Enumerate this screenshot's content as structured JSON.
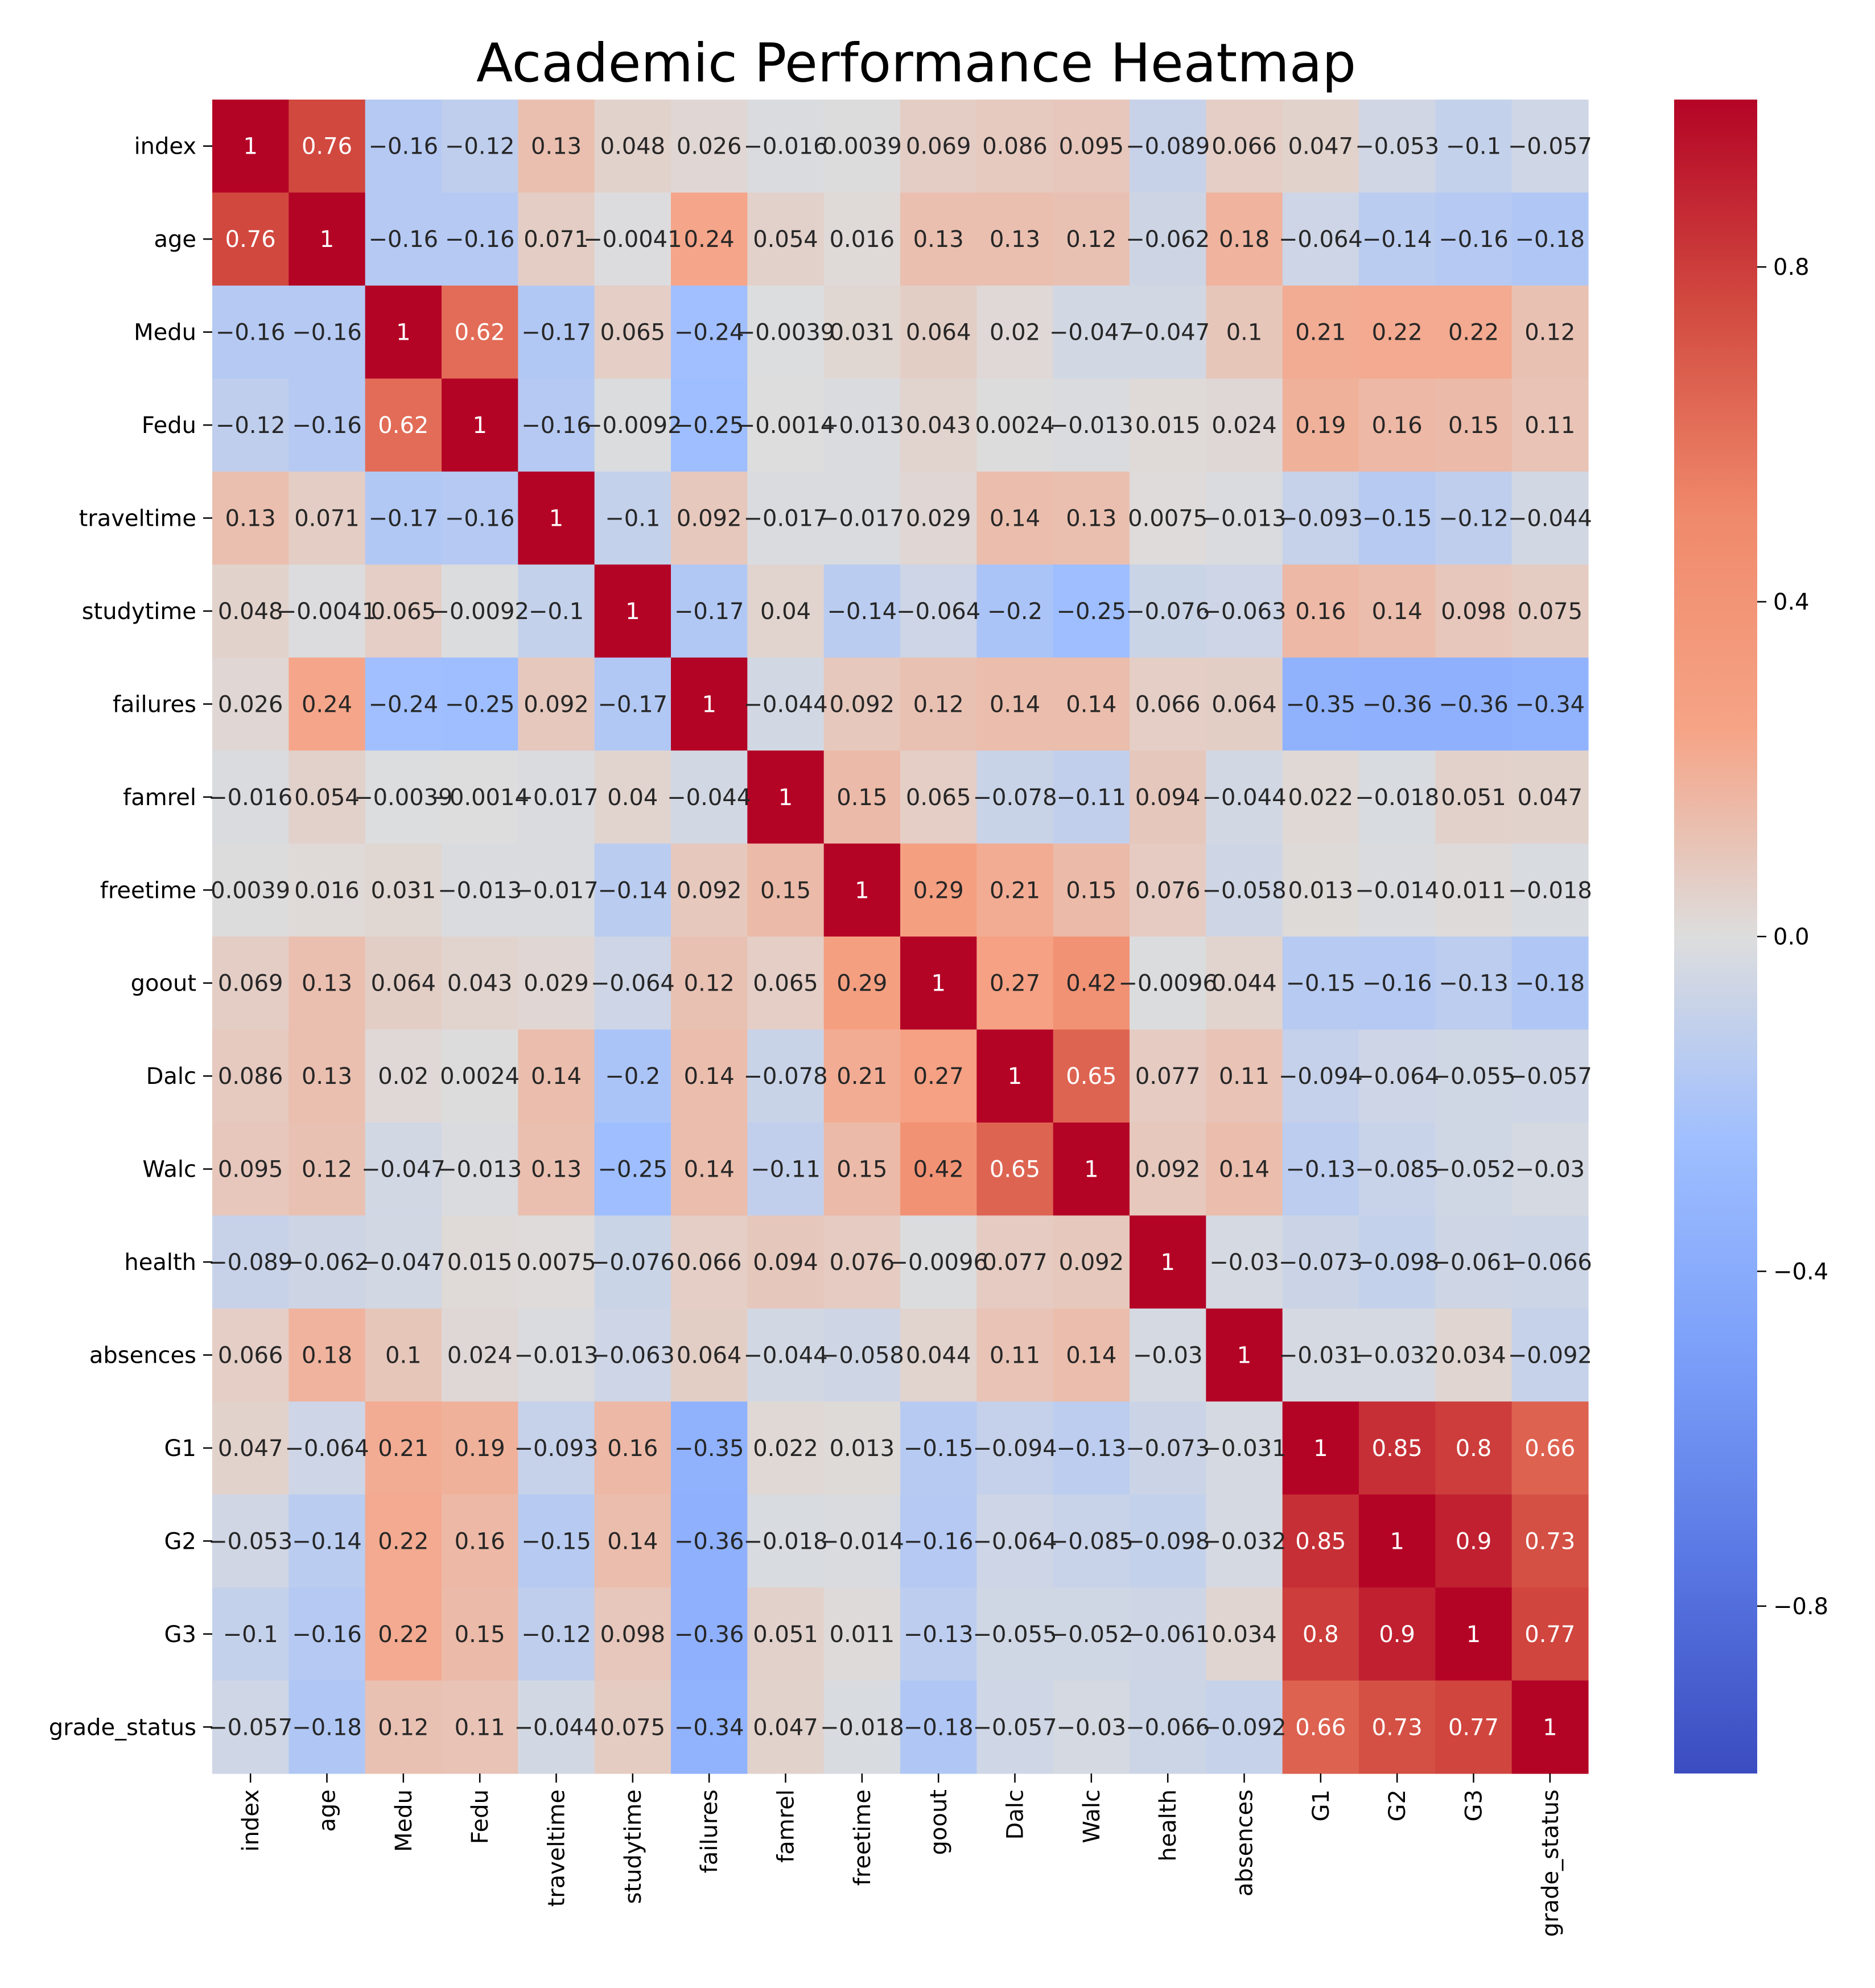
{
  "chart_data": {
    "type": "heatmap",
    "title": "Academic Performance Heatmap",
    "xlabel": "",
    "ylabel": "",
    "labels": [
      "index",
      "age",
      "Medu",
      "Fedu",
      "traveltime",
      "studytime",
      "failures",
      "famrel",
      "freetime",
      "goout",
      "Dalc",
      "Walc",
      "health",
      "absences",
      "G1",
      "G2",
      "G3",
      "grade_status"
    ],
    "values": [
      [
        1,
        0.76,
        -0.16,
        -0.12,
        0.13,
        0.048,
        0.026,
        -0.016,
        0.0039,
        0.069,
        0.086,
        0.095,
        -0.089,
        0.066,
        0.047,
        -0.053,
        -0.1,
        -0.057
      ],
      [
        0.76,
        1,
        -0.16,
        -0.16,
        0.071,
        -0.0041,
        0.24,
        0.054,
        0.016,
        0.13,
        0.13,
        0.12,
        -0.062,
        0.18,
        -0.064,
        -0.14,
        -0.16,
        -0.18
      ],
      [
        -0.16,
        -0.16,
        1,
        0.62,
        -0.17,
        0.065,
        -0.24,
        -0.0039,
        0.031,
        0.064,
        0.02,
        -0.047,
        -0.047,
        0.1,
        0.21,
        0.22,
        0.22,
        0.12
      ],
      [
        -0.12,
        -0.16,
        0.62,
        1,
        -0.16,
        -0.0092,
        -0.25,
        -0.0014,
        -0.013,
        0.043,
        0.0024,
        -0.013,
        0.015,
        0.024,
        0.19,
        0.16,
        0.15,
        0.11
      ],
      [
        0.13,
        0.071,
        -0.17,
        -0.16,
        1,
        -0.1,
        0.092,
        -0.017,
        -0.017,
        0.029,
        0.14,
        0.13,
        0.0075,
        -0.013,
        -0.093,
        -0.15,
        -0.12,
        -0.044
      ],
      [
        0.048,
        -0.0041,
        0.065,
        -0.0092,
        -0.1,
        1,
        -0.17,
        0.04,
        -0.14,
        -0.064,
        -0.2,
        -0.25,
        -0.076,
        -0.063,
        0.16,
        0.14,
        0.098,
        0.075
      ],
      [
        0.026,
        0.24,
        -0.24,
        -0.25,
        0.092,
        -0.17,
        1,
        -0.044,
        0.092,
        0.12,
        0.14,
        0.14,
        0.066,
        0.064,
        -0.35,
        -0.36,
        -0.36,
        -0.34
      ],
      [
        -0.016,
        0.054,
        -0.0039,
        -0.0014,
        -0.017,
        0.04,
        -0.044,
        1,
        0.15,
        0.065,
        -0.078,
        -0.11,
        0.094,
        -0.044,
        0.022,
        -0.018,
        0.051,
        0.047
      ],
      [
        0.0039,
        0.016,
        0.031,
        -0.013,
        -0.017,
        -0.14,
        0.092,
        0.15,
        1,
        0.29,
        0.21,
        0.15,
        0.076,
        -0.058,
        0.013,
        -0.014,
        0.011,
        -0.018
      ],
      [
        0.069,
        0.13,
        0.064,
        0.043,
        0.029,
        -0.064,
        0.12,
        0.065,
        0.29,
        1,
        0.27,
        0.42,
        -0.0096,
        0.044,
        -0.15,
        -0.16,
        -0.13,
        -0.18
      ],
      [
        0.086,
        0.13,
        0.02,
        0.0024,
        0.14,
        -0.2,
        0.14,
        -0.078,
        0.21,
        0.27,
        1,
        0.65,
        0.077,
        0.11,
        -0.094,
        -0.064,
        -0.055,
        -0.057
      ],
      [
        0.095,
        0.12,
        -0.047,
        -0.013,
        0.13,
        -0.25,
        0.14,
        -0.11,
        0.15,
        0.42,
        0.65,
        1,
        0.092,
        0.14,
        -0.13,
        -0.085,
        -0.052,
        -0.03
      ],
      [
        -0.089,
        -0.062,
        -0.047,
        0.015,
        0.0075,
        -0.076,
        0.066,
        0.094,
        0.076,
        -0.0096,
        0.077,
        0.092,
        1,
        -0.03,
        -0.073,
        -0.098,
        -0.061,
        -0.066
      ],
      [
        0.066,
        0.18,
        0.1,
        0.024,
        -0.013,
        -0.063,
        0.064,
        -0.044,
        -0.058,
        0.044,
        0.11,
        0.14,
        -0.03,
        1,
        -0.031,
        -0.032,
        0.034,
        -0.092
      ],
      [
        0.047,
        -0.064,
        0.21,
        0.19,
        -0.093,
        0.16,
        -0.35,
        0.022,
        0.013,
        -0.15,
        -0.094,
        -0.13,
        -0.073,
        -0.031,
        1,
        0.85,
        0.8,
        0.66
      ],
      [
        -0.053,
        -0.14,
        0.22,
        0.16,
        -0.15,
        0.14,
        -0.36,
        -0.018,
        -0.014,
        -0.16,
        -0.064,
        -0.085,
        -0.098,
        -0.032,
        0.85,
        1,
        0.9,
        0.73
      ],
      [
        -0.1,
        -0.16,
        0.22,
        0.15,
        -0.12,
        0.098,
        -0.36,
        0.051,
        0.011,
        -0.13,
        -0.055,
        -0.052,
        -0.061,
        0.034,
        0.8,
        0.9,
        1,
        0.77
      ],
      [
        -0.057,
        -0.18,
        0.12,
        0.11,
        -0.044,
        0.075,
        -0.34,
        0.047,
        -0.018,
        -0.18,
        -0.057,
        -0.03,
        -0.066,
        -0.092,
        0.66,
        0.73,
        0.77,
        1
      ]
    ],
    "colormap": "coolwarm",
    "vmin": -1,
    "vmax": 1,
    "colorbar_ticks": [
      0.8,
      0.4,
      0.0,
      -0.4,
      -0.8
    ],
    "colorbar_tick_labels": [
      "0.8",
      "0.4",
      "0.0",
      "−0.4",
      "−0.8"
    ],
    "legend": "colorbar-right"
  }
}
